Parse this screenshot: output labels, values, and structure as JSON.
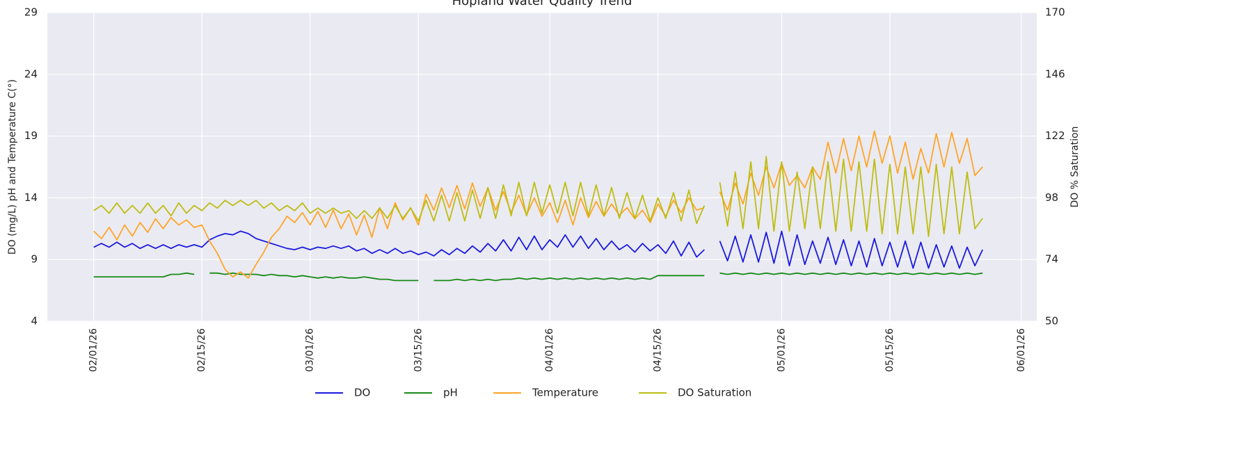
{
  "chart_data": {
    "type": "line",
    "title": "Hopland Water Quality Trend",
    "ylabel": "DO (mg/L) pH and Temperature C(°)",
    "y2label": "DO % Saturation",
    "x": [
      "02/01/26",
      "02/02/26",
      "02/03/26",
      "02/04/26",
      "02/05/26",
      "02/06/26",
      "02/07/26",
      "02/08/26",
      "02/09/26",
      "02/10/26",
      "02/11/26",
      "02/12/26",
      "02/13/26",
      "02/14/26",
      "02/15/26",
      "02/16/26",
      "02/17/26",
      "02/18/26",
      "02/19/26",
      "02/20/26",
      "02/21/26",
      "02/22/26",
      "02/23/26",
      "02/24/26",
      "02/25/26",
      "02/26/26",
      "02/27/26",
      "02/28/26",
      "03/01/26",
      "03/02/26",
      "03/03/26",
      "03/04/26",
      "03/05/26",
      "03/06/26",
      "03/07/26",
      "03/08/26",
      "03/09/26",
      "03/10/26",
      "03/11/26",
      "03/12/26",
      "03/13/26",
      "03/14/26",
      "03/15/26",
      "03/16/26",
      "03/17/26",
      "03/18/26",
      "03/19/26",
      "03/20/26",
      "03/21/26",
      "03/22/26",
      "03/23/26",
      "03/24/26",
      "03/25/26",
      "03/26/26",
      "03/27/26",
      "03/28/26",
      "03/29/26",
      "03/30/26",
      "03/31/26",
      "04/01/26",
      "04/02/26",
      "04/03/26",
      "04/04/26",
      "04/05/26",
      "04/06/26",
      "04/07/26",
      "04/08/26",
      "04/09/26",
      "04/10/26",
      "04/11/26",
      "04/12/26",
      "04/13/26",
      "04/14/26",
      "04/15/26",
      "04/16/26",
      "04/17/26",
      "04/18/26",
      "04/19/26",
      "04/20/26",
      "04/21/26",
      "04/22/26",
      "04/23/26",
      "04/24/26",
      "04/25/26",
      "04/26/26",
      "04/27/26",
      "04/28/26",
      "04/29/26",
      "04/30/26",
      "05/01/26",
      "05/02/26",
      "05/03/26",
      "05/04/26",
      "05/05/26",
      "05/06/26",
      "05/07/26",
      "05/08/26",
      "05/09/26",
      "05/10/26",
      "05/11/26",
      "05/12/26",
      "05/13/26",
      "05/14/26",
      "05/15/26",
      "05/16/26",
      "05/17/26",
      "05/18/26",
      "05/19/26",
      "05/20/26",
      "05/21/26",
      "05/22/26",
      "05/23/26",
      "05/24/26",
      "05/25/26",
      "05/26/26",
      "05/27/26"
    ],
    "series": [
      {
        "name": "DO",
        "color": "#1a1ae0",
        "values": [
          10.0,
          10.3,
          10.0,
          10.4,
          10.0,
          10.3,
          9.9,
          10.2,
          9.9,
          10.2,
          9.9,
          10.2,
          10.0,
          10.2,
          10.0,
          10.6,
          10.9,
          11.1,
          11.0,
          11.3,
          11.1,
          10.7,
          10.5,
          10.3,
          10.1,
          9.9,
          9.8,
          10.0,
          9.8,
          10.0,
          9.9,
          10.1,
          9.9,
          10.1,
          9.7,
          9.9,
          9.5,
          9.8,
          9.5,
          9.9,
          9.5,
          9.7,
          9.4,
          9.6,
          9.3,
          9.8,
          9.4,
          9.9,
          9.5,
          10.1,
          9.6,
          10.3,
          9.7,
          10.6,
          9.7,
          10.8,
          9.8,
          10.9,
          9.8,
          10.6,
          10.0,
          11.0,
          10.0,
          10.9,
          9.9,
          10.7,
          9.8,
          10.5,
          9.8,
          10.2,
          9.6,
          10.3,
          9.7,
          10.2,
          9.5,
          10.5,
          9.3,
          10.4,
          9.2,
          9.8,
          null,
          10.5,
          8.9,
          10.9,
          8.8,
          11.0,
          8.8,
          11.2,
          8.7,
          11.3,
          8.5,
          11.0,
          8.6,
          10.5,
          8.7,
          10.8,
          8.6,
          10.6,
          8.5,
          10.5,
          8.4,
          10.7,
          8.5,
          10.4,
          8.4,
          10.5,
          8.3,
          10.4,
          8.3,
          10.2,
          8.4,
          10.1,
          8.3,
          10.0,
          8.5,
          9.8
        ]
      },
      {
        "name": "pH",
        "color": "#178a17",
        "values": [
          7.6,
          7.6,
          7.6,
          7.6,
          7.6,
          7.6,
          7.6,
          7.6,
          7.6,
          7.6,
          7.8,
          7.8,
          7.9,
          7.8,
          null,
          7.9,
          7.9,
          7.8,
          7.9,
          7.8,
          7.8,
          7.8,
          7.7,
          7.8,
          7.7,
          7.7,
          7.6,
          7.7,
          7.6,
          7.5,
          7.6,
          7.5,
          7.6,
          7.5,
          7.5,
          7.6,
          7.5,
          7.4,
          7.4,
          7.3,
          7.3,
          7.3,
          7.3,
          null,
          7.3,
          7.3,
          7.3,
          7.4,
          7.3,
          7.4,
          7.3,
          7.4,
          7.3,
          7.4,
          7.4,
          7.5,
          7.4,
          7.5,
          7.4,
          7.5,
          7.4,
          7.5,
          7.4,
          7.5,
          7.4,
          7.5,
          7.4,
          7.5,
          7.4,
          7.5,
          7.4,
          7.5,
          7.4,
          7.7,
          7.7,
          7.7,
          7.7,
          7.7,
          7.7,
          7.7,
          null,
          7.9,
          7.8,
          7.9,
          7.8,
          7.9,
          7.8,
          7.9,
          7.8,
          7.9,
          7.8,
          7.9,
          7.8,
          7.9,
          7.8,
          7.9,
          7.8,
          7.9,
          7.8,
          7.9,
          7.8,
          7.9,
          7.8,
          7.9,
          7.8,
          7.9,
          7.8,
          7.9,
          7.8,
          7.9,
          7.8,
          7.9,
          7.8,
          7.9,
          7.8,
          7.9
        ]
      },
      {
        "name": "Temperature",
        "color": "#ffa526",
        "values": [
          11.3,
          10.7,
          11.6,
          10.6,
          11.8,
          10.9,
          12.0,
          11.2,
          12.3,
          11.5,
          12.4,
          11.8,
          12.2,
          11.6,
          11.8,
          10.5,
          9.5,
          8.2,
          7.6,
          8.0,
          7.5,
          8.6,
          9.6,
          10.8,
          11.5,
          12.5,
          12.0,
          12.8,
          11.8,
          12.9,
          11.6,
          13.0,
          11.5,
          12.7,
          11.0,
          12.6,
          10.8,
          13.2,
          11.5,
          13.6,
          12.2,
          13.2,
          11.8,
          14.3,
          13.0,
          14.8,
          13.2,
          15.0,
          13.1,
          15.2,
          13.3,
          14.8,
          13.0,
          14.5,
          12.8,
          14.2,
          12.6,
          14.0,
          12.5,
          13.6,
          12.0,
          13.8,
          11.8,
          14.0,
          12.4,
          13.7,
          12.5,
          13.5,
          12.6,
          13.2,
          12.3,
          13.0,
          12.0,
          13.5,
          12.5,
          13.8,
          12.8,
          14.0,
          13.0,
          13.2,
          null,
          14.5,
          13.0,
          15.2,
          13.5,
          16.0,
          14.2,
          16.5,
          14.8,
          16.8,
          15.0,
          15.8,
          14.8,
          16.5,
          15.5,
          18.5,
          16.0,
          18.8,
          16.2,
          19.0,
          16.5,
          19.4,
          16.8,
          19.0,
          16.0,
          18.5,
          15.5,
          18.0,
          16.0,
          19.2,
          16.5,
          19.3,
          16.8,
          18.8,
          15.8,
          16.5
        ]
      },
      {
        "name": "DO Saturation",
        "color": "#bdbd12",
        "axis": "y2",
        "values": [
          93,
          95,
          92,
          96,
          92,
          95,
          92,
          96,
          92,
          95,
          91,
          96,
          92,
          95,
          93,
          96,
          94,
          97,
          95,
          97,
          95,
          97,
          94,
          96,
          93,
          95,
          93,
          96,
          92,
          94,
          92,
          94,
          92,
          93,
          90,
          93,
          90,
          94,
          90,
          95,
          90,
          94,
          89,
          97,
          89,
          99,
          89,
          100,
          89,
          101,
          90,
          102,
          90,
          103,
          91,
          104,
          91,
          104,
          92,
          103,
          92,
          104,
          91,
          104,
          91,
          103,
          91,
          102,
          90,
          100,
          90,
          99,
          89,
          98,
          90,
          100,
          89,
          101,
          88,
          95,
          null,
          104,
          87,
          108,
          86,
          112,
          86,
          114,
          85,
          112,
          85,
          108,
          86,
          110,
          86,
          112,
          85,
          113,
          85,
          112,
          85,
          113,
          84,
          111,
          84,
          110,
          84,
          110,
          83,
          111,
          84,
          110,
          84,
          108,
          86,
          90
        ]
      }
    ],
    "xlim": [
      "01/26/26",
      "06/03/26"
    ],
    "xticks": [
      "02/01/26",
      "02/15/26",
      "03/01/26",
      "03/15/26",
      "04/01/26",
      "04/15/26",
      "05/01/26",
      "05/15/26",
      "06/01/26"
    ],
    "ylim": [
      4,
      29
    ],
    "yticks": [
      4,
      9,
      14,
      19,
      24,
      29
    ],
    "y2lim": [
      50,
      170
    ],
    "y2ticks": [
      50,
      74,
      98,
      122,
      146,
      170
    ],
    "grid": true,
    "legend": "bottom"
  }
}
